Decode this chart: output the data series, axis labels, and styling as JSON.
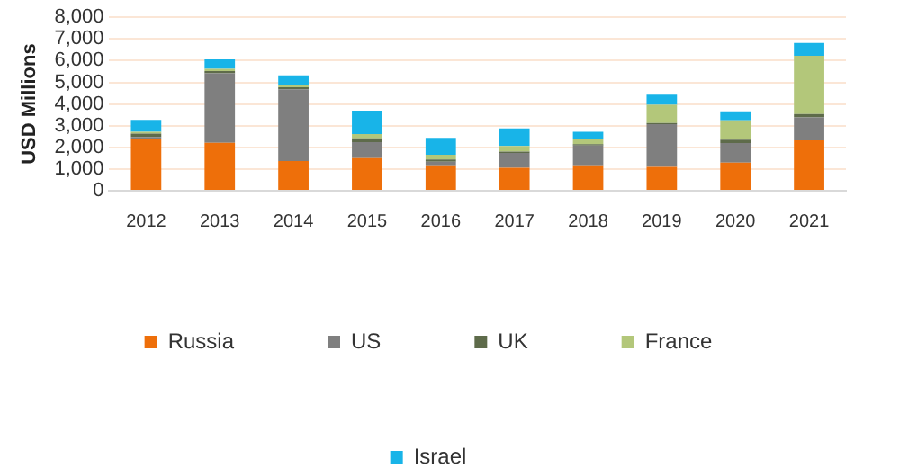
{
  "chart_data": {
    "type": "bar",
    "stacked": true,
    "ylabel": "USD Millions",
    "categories": [
      "2012",
      "2013",
      "2014",
      "2015",
      "2016",
      "2017",
      "2018",
      "2019",
      "2020",
      "2021"
    ],
    "series": [
      {
        "name": "Russia",
        "color": "#ee6f0a",
        "values": [
          2380,
          2210,
          1370,
          1500,
          1170,
          1060,
          1170,
          1100,
          1300,
          2320
        ]
      },
      {
        "name": "US",
        "color": "#7f7f7f",
        "values": [
          100,
          3200,
          3310,
          740,
          170,
          680,
          920,
          1970,
          900,
          1060
        ]
      },
      {
        "name": "UK",
        "color": "#5e6b4a",
        "values": [
          150,
          110,
          90,
          180,
          100,
          60,
          60,
          50,
          150,
          160
        ]
      },
      {
        "name": "France",
        "color": "#b3c77a",
        "values": [
          90,
          100,
          90,
          190,
          220,
          260,
          250,
          840,
          900,
          2680
        ]
      },
      {
        "name": "Israel",
        "color": "#18b4e8",
        "values": [
          550,
          440,
          460,
          1080,
          780,
          810,
          320,
          470,
          410,
          600
        ]
      }
    ],
    "ylim": [
      0,
      8000
    ],
    "yticks": [
      {
        "value": 0,
        "label": "0"
      },
      {
        "value": 1000,
        "label": "1,000"
      },
      {
        "value": 2000,
        "label": "2,000"
      },
      {
        "value": 3000,
        "label": "3,000"
      },
      {
        "value": 4000,
        "label": "4,000"
      },
      {
        "value": 5000,
        "label": "5,000"
      },
      {
        "value": 6000,
        "label": "6,000"
      },
      {
        "value": 7000,
        "label": "7,000"
      },
      {
        "value": 8000,
        "label": "8,000"
      }
    ],
    "grid": "y",
    "legend": "bottom"
  }
}
